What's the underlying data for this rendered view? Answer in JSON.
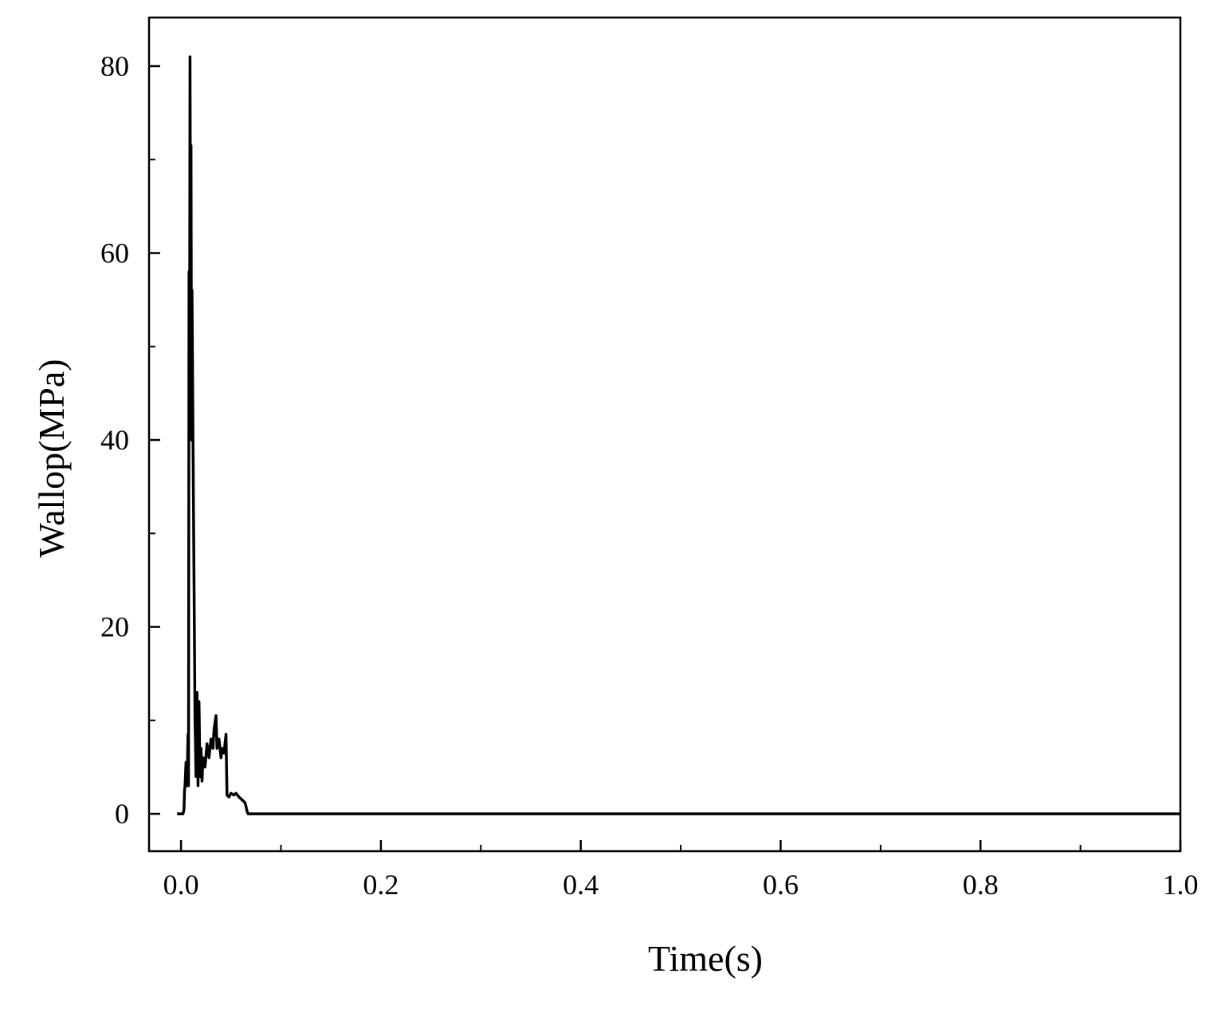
{
  "chart_data": {
    "type": "line",
    "x_label": "Time(s)",
    "y_label": "Wallop(MPa)",
    "x": [
      -0.004,
      0.002,
      0.003,
      0.0035,
      0.004,
      0.005,
      0.006,
      0.007,
      0.0075,
      0.008,
      0.0085,
      0.009,
      0.0095,
      0.01,
      0.0105,
      0.011,
      0.012,
      0.013,
      0.014,
      0.015,
      0.016,
      0.017,
      0.018,
      0.019,
      0.02,
      0.021,
      0.022,
      0.024,
      0.026,
      0.028,
      0.03,
      0.032,
      0.033,
      0.035,
      0.036,
      0.038,
      0.04,
      0.041,
      0.043,
      0.045,
      0.046,
      0.048,
      0.05,
      0.053,
      0.055,
      0.058,
      0.06,
      0.062,
      0.064,
      0.065,
      0.066,
      0.067,
      1.0
    ],
    "series": [
      {
        "name": "Wallop",
        "color": "#000000",
        "values": [
          0,
          0,
          0.5,
          2.5,
          3,
          5.5,
          3,
          8.5,
          3,
          58,
          40,
          81,
          60,
          71.5,
          40,
          56,
          40,
          25,
          10,
          4,
          13,
          3,
          12,
          4,
          7,
          3.5,
          6,
          5,
          7.5,
          6,
          8,
          7,
          9,
          10.5,
          7,
          8,
          6,
          7,
          6.5,
          8.5,
          2,
          1.8,
          2.2,
          2,
          2.2,
          1.8,
          1.6,
          1.4,
          1.2,
          0.8,
          0.3,
          0,
          0
        ]
      }
    ],
    "xlim": [
      -0.032,
      1.0
    ],
    "ylim": [
      -4,
      85.2
    ],
    "xticks": [
      {
        "value": 0,
        "label": "0.0"
      },
      0.2,
      0.4,
      0.6,
      0.8,
      {
        "value": 1,
        "label": "1.0"
      }
    ],
    "yticks": [
      0,
      20,
      40,
      60,
      80
    ],
    "xminorticks": [
      0.1,
      0.3,
      0.5,
      0.7,
      0.9
    ],
    "yminorticks": [
      10,
      30,
      50,
      70
    ],
    "grid": false
  }
}
